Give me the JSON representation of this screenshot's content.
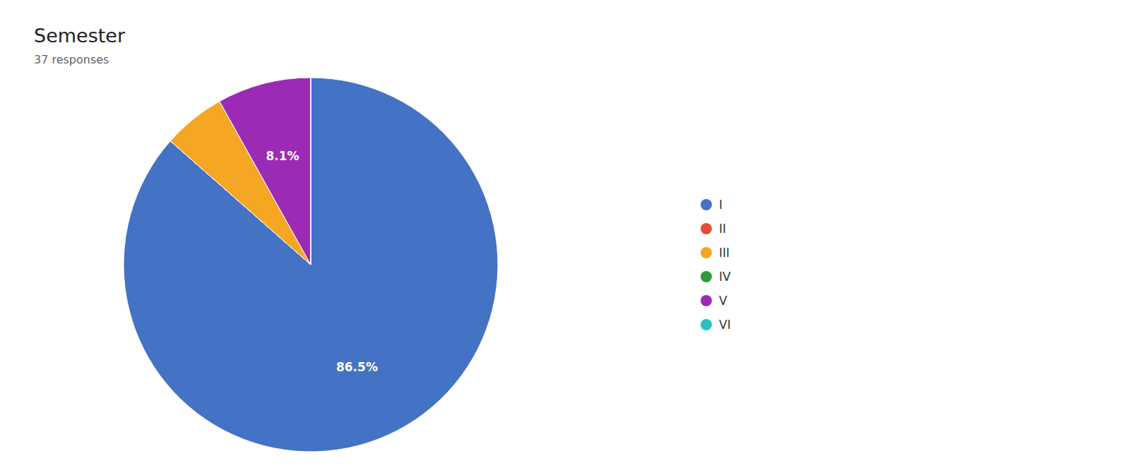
{
  "chart_data": {
    "type": "pie",
    "title": "Semester",
    "subtitle": "37 responses",
    "categories": [
      "I",
      "II",
      "III",
      "IV",
      "V",
      "VI"
    ],
    "values": [
      86.5,
      0.001,
      5.4,
      0.001,
      8.1,
      0.001
    ],
    "value_labels": [
      "86.5%",
      null,
      null,
      null,
      "8.1%",
      null
    ],
    "colors": [
      "#4472C4",
      "#E84B37",
      "#F5A623",
      "#2E9B3B",
      "#9B2BB5",
      "#2BBFBF"
    ],
    "legend": "right"
  }
}
